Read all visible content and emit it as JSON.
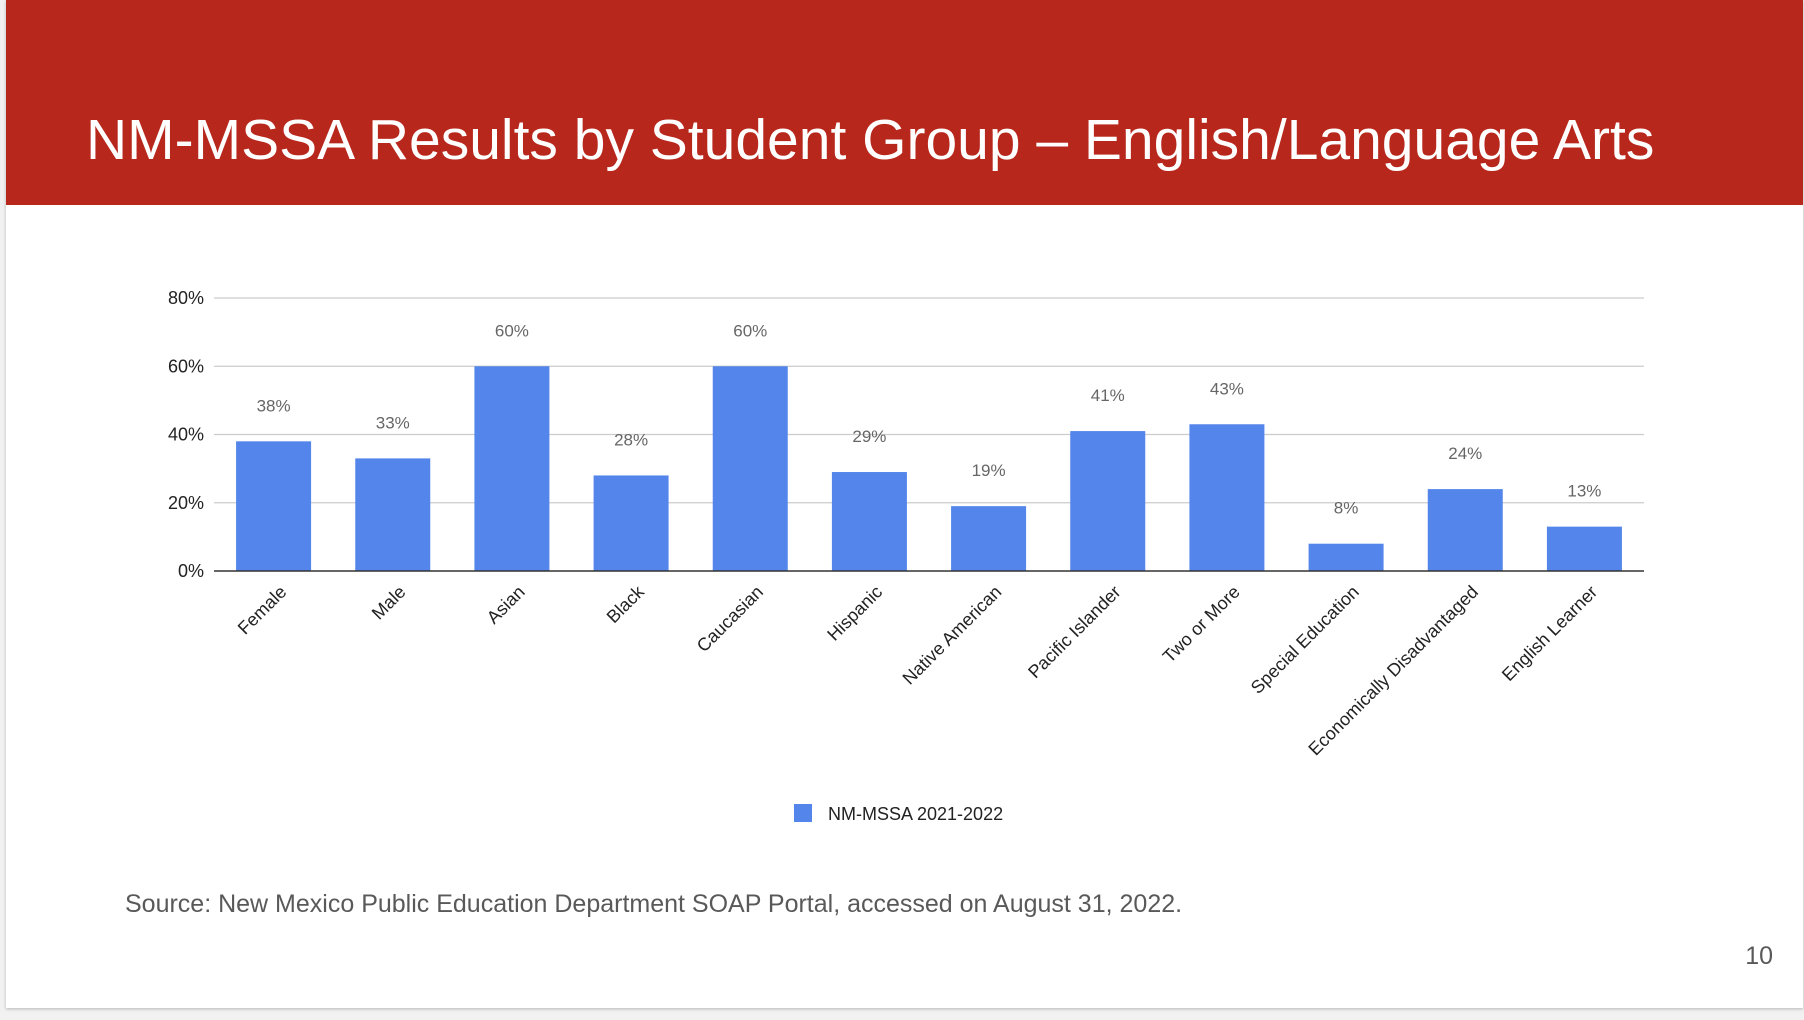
{
  "slide": {
    "title": "NM-MSSA Results by Student Group – English/Language Arts",
    "source": "Source: New Mexico Public Education Department SOAP Portal, accessed on August 31, 2022.",
    "page_number": "10"
  },
  "colors": {
    "header": "#b8271c",
    "bar": "#5385ea",
    "title_text": "#ffffff",
    "axis_text": "#222222",
    "label_text": "#666666",
    "grid": "#cccccc"
  },
  "chart_data": {
    "type": "bar",
    "title": "",
    "xlabel": "",
    "ylabel": "",
    "categories": [
      "Female",
      "Male",
      "Asian",
      "Black",
      "Caucasian",
      "Hispanic",
      "Native American",
      "Pacific Islander",
      "Two or More",
      "Special Education",
      "Economically Disadvantaged",
      "English Learner"
    ],
    "series": [
      {
        "name": "NM-MSSA 2021-2022",
        "values": [
          38,
          33,
          60,
          28,
          60,
          29,
          19,
          41,
          43,
          8,
          24,
          13
        ]
      }
    ],
    "data_labels": [
      "38%",
      "33%",
      "60%",
      "28%",
      "60%",
      "29%",
      "19%",
      "41%",
      "43%",
      "8%",
      "24%",
      "13%"
    ],
    "ylim": [
      0,
      80
    ],
    "y_ticks": [
      0,
      20,
      40,
      60,
      80
    ],
    "y_tick_labels": [
      "0%",
      "20%",
      "40%",
      "60%",
      "80%"
    ],
    "grid": true,
    "legend_position": "bottom"
  }
}
